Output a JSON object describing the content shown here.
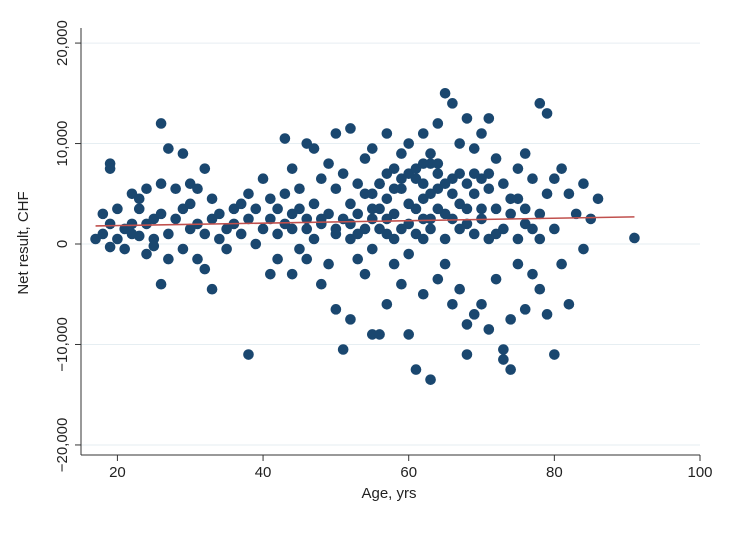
{
  "chart_data": {
    "type": "scatter",
    "title": "",
    "xlabel": "Age, yrs",
    "ylabel": "Net result, CHF",
    "xlim": [
      15,
      100
    ],
    "ylim": [
      -21000,
      21500
    ],
    "x_ticks": [
      20,
      40,
      60,
      80,
      100
    ],
    "x_tick_labels": [
      "20",
      "40",
      "60",
      "80",
      "100"
    ],
    "y_ticks": [
      -20000,
      -10000,
      0,
      10000,
      20000
    ],
    "y_tick_labels": [
      "−20,000",
      "−10,000",
      "0",
      "10,000",
      "20,000"
    ],
    "grid": "horizontal",
    "legend": "none",
    "series": [
      {
        "marker_color": "#1a476f",
        "points": [
          [
            17,
            500
          ],
          [
            18,
            1000
          ],
          [
            18,
            3000
          ],
          [
            19,
            2000
          ],
          [
            19,
            8000
          ],
          [
            19,
            7500
          ],
          [
            19,
            -300
          ],
          [
            20,
            3500
          ],
          [
            20,
            500
          ],
          [
            21,
            1500
          ],
          [
            21,
            -500
          ],
          [
            22,
            2000
          ],
          [
            22,
            5000
          ],
          [
            22,
            1000
          ],
          [
            23,
            800
          ],
          [
            23,
            3500
          ],
          [
            23,
            4500
          ],
          [
            24,
            -1000
          ],
          [
            24,
            2000
          ],
          [
            24,
            5500
          ],
          [
            25,
            2500
          ],
          [
            25,
            500
          ],
          [
            25,
            -200
          ],
          [
            26,
            12000
          ],
          [
            26,
            -4000
          ],
          [
            26,
            3000
          ],
          [
            26,
            6000
          ],
          [
            27,
            9500
          ],
          [
            27,
            -1500
          ],
          [
            27,
            1000
          ],
          [
            28,
            5500
          ],
          [
            28,
            2500
          ],
          [
            29,
            9000
          ],
          [
            29,
            3500
          ],
          [
            29,
            -500
          ],
          [
            30,
            6000
          ],
          [
            30,
            1500
          ],
          [
            30,
            4000
          ],
          [
            31,
            2000
          ],
          [
            31,
            -1500
          ],
          [
            31,
            5500
          ],
          [
            32,
            7500
          ],
          [
            32,
            1000
          ],
          [
            32,
            -2500
          ],
          [
            33,
            -4500
          ],
          [
            33,
            4500
          ],
          [
            33,
            2500
          ],
          [
            34,
            500
          ],
          [
            34,
            3000
          ],
          [
            35,
            1500
          ],
          [
            35,
            -500
          ],
          [
            36,
            2000
          ],
          [
            36,
            3500
          ],
          [
            37,
            4000
          ],
          [
            37,
            1000
          ],
          [
            38,
            -11000
          ],
          [
            38,
            5000
          ],
          [
            38,
            2500
          ],
          [
            39,
            0
          ],
          [
            39,
            3500
          ],
          [
            40,
            1500
          ],
          [
            40,
            6500
          ],
          [
            41,
            -3000
          ],
          [
            41,
            2500
          ],
          [
            41,
            4500
          ],
          [
            42,
            1000
          ],
          [
            42,
            -1500
          ],
          [
            42,
            3500
          ],
          [
            43,
            10500
          ],
          [
            43,
            5000
          ],
          [
            43,
            2000
          ],
          [
            44,
            -3000
          ],
          [
            44,
            7500
          ],
          [
            44,
            1500
          ],
          [
            45,
            3500
          ],
          [
            45,
            -500
          ],
          [
            45,
            5500
          ],
          [
            46,
            10000
          ],
          [
            46,
            2500
          ],
          [
            46,
            -1500
          ],
          [
            47,
            4000
          ],
          [
            47,
            9500
          ],
          [
            47,
            500
          ],
          [
            48,
            -4000
          ],
          [
            48,
            6500
          ],
          [
            48,
            2000
          ],
          [
            49,
            8000
          ],
          [
            49,
            -2000
          ],
          [
            49,
            3000
          ],
          [
            50,
            11000
          ],
          [
            50,
            -6500
          ],
          [
            50,
            5500
          ],
          [
            50,
            1000
          ],
          [
            51,
            -10500
          ],
          [
            51,
            7000
          ],
          [
            51,
            2500
          ],
          [
            52,
            11500
          ],
          [
            52,
            -7500
          ],
          [
            52,
            4000
          ],
          [
            52,
            500
          ],
          [
            53,
            6000
          ],
          [
            53,
            -1500
          ],
          [
            53,
            3000
          ],
          [
            54,
            8500
          ],
          [
            54,
            -3000
          ],
          [
            54,
            5000
          ],
          [
            54,
            1500
          ],
          [
            55,
            -9000
          ],
          [
            55,
            9500
          ],
          [
            55,
            2500
          ],
          [
            55,
            -500
          ],
          [
            56,
            -9000
          ],
          [
            56,
            6000
          ],
          [
            56,
            3500
          ],
          [
            57,
            11000
          ],
          [
            57,
            -6000
          ],
          [
            57,
            4500
          ],
          [
            57,
            1000
          ],
          [
            58,
            7500
          ],
          [
            58,
            -2000
          ],
          [
            58,
            3000
          ],
          [
            59,
            9000
          ],
          [
            59,
            -4000
          ],
          [
            59,
            5500
          ],
          [
            60,
            -9000
          ],
          [
            60,
            10000
          ],
          [
            60,
            2000
          ],
          [
            60,
            -1000
          ],
          [
            61,
            -12500
          ],
          [
            61,
            6500
          ],
          [
            61,
            3500
          ],
          [
            62,
            11000
          ],
          [
            62,
            -5000
          ],
          [
            62,
            4500
          ],
          [
            62,
            500
          ],
          [
            63,
            -13500
          ],
          [
            63,
            8000
          ],
          [
            63,
            2500
          ],
          [
            64,
            12000
          ],
          [
            64,
            -3500
          ],
          [
            64,
            5500
          ],
          [
            65,
            15000
          ],
          [
            65,
            -2000
          ],
          [
            65,
            3000
          ],
          [
            66,
            14000
          ],
          [
            66,
            -6000
          ],
          [
            66,
            6500
          ],
          [
            67,
            10000
          ],
          [
            67,
            -4500
          ],
          [
            67,
            4000
          ],
          [
            68,
            12500
          ],
          [
            68,
            -11000
          ],
          [
            68,
            -8000
          ],
          [
            68,
            2000
          ],
          [
            69,
            9500
          ],
          [
            69,
            -7000
          ],
          [
            69,
            5000
          ],
          [
            70,
            11000
          ],
          [
            70,
            -6000
          ],
          [
            70,
            3500
          ],
          [
            71,
            12500
          ],
          [
            71,
            -8500
          ],
          [
            71,
            5500
          ],
          [
            72,
            8500
          ],
          [
            72,
            -3500
          ],
          [
            72,
            1000
          ],
          [
            73,
            -10500
          ],
          [
            73,
            -11500
          ],
          [
            73,
            6000
          ],
          [
            74,
            -12500
          ],
          [
            74,
            -7500
          ],
          [
            74,
            3000
          ],
          [
            75,
            7500
          ],
          [
            75,
            -2000
          ],
          [
            75,
            4500
          ],
          [
            76,
            9000
          ],
          [
            76,
            -6500
          ],
          [
            76,
            2000
          ],
          [
            77,
            6500
          ],
          [
            77,
            -3000
          ],
          [
            78,
            14000
          ],
          [
            78,
            -4500
          ],
          [
            78,
            3000
          ],
          [
            79,
            13000
          ],
          [
            79,
            -7000
          ],
          [
            79,
            5000
          ],
          [
            80,
            -11000
          ],
          [
            80,
            6500
          ],
          [
            80,
            1500
          ],
          [
            81,
            7500
          ],
          [
            81,
            -2000
          ],
          [
            82,
            -6000
          ],
          [
            82,
            5000
          ],
          [
            83,
            3000
          ],
          [
            84,
            6000
          ],
          [
            84,
            -500
          ],
          [
            85,
            2500
          ],
          [
            86,
            4500
          ],
          [
            91,
            600
          ],
          [
            44,
            3000
          ],
          [
            46,
            1500
          ],
          [
            48,
            2500
          ],
          [
            50,
            1500
          ],
          [
            52,
            2000
          ],
          [
            53,
            1000
          ],
          [
            55,
            3500
          ],
          [
            56,
            1500
          ],
          [
            57,
            2500
          ],
          [
            58,
            500
          ],
          [
            59,
            1500
          ],
          [
            60,
            4000
          ],
          [
            61,
            1000
          ],
          [
            62,
            2500
          ],
          [
            63,
            1500
          ],
          [
            64,
            3500
          ],
          [
            65,
            500
          ],
          [
            66,
            2500
          ],
          [
            67,
            1500
          ],
          [
            68,
            3500
          ],
          [
            69,
            1000
          ],
          [
            70,
            2500
          ],
          [
            71,
            500
          ],
          [
            72,
            3500
          ],
          [
            73,
            1500
          ],
          [
            74,
            4500
          ],
          [
            75,
            500
          ],
          [
            76,
            3500
          ],
          [
            77,
            1500
          ],
          [
            78,
            500
          ],
          [
            62,
            6000
          ],
          [
            63,
            5000
          ],
          [
            64,
            7000
          ],
          [
            65,
            6000
          ],
          [
            66,
            5000
          ],
          [
            67,
            7000
          ],
          [
            68,
            6000
          ],
          [
            69,
            7000
          ],
          [
            70,
            6500
          ],
          [
            71,
            7000
          ],
          [
            55,
            5000
          ],
          [
            56,
            6000
          ],
          [
            57,
            7000
          ],
          [
            58,
            5500
          ],
          [
            59,
            6500
          ],
          [
            60,
            7000
          ],
          [
            61,
            7500
          ],
          [
            62,
            8000
          ],
          [
            63,
            9000
          ],
          [
            64,
            8000
          ]
        ]
      },
      {
        "type": "line",
        "line_color": "#c0504d",
        "x": [
          17,
          91
        ],
        "y": [
          1800,
          2700
        ]
      }
    ]
  }
}
